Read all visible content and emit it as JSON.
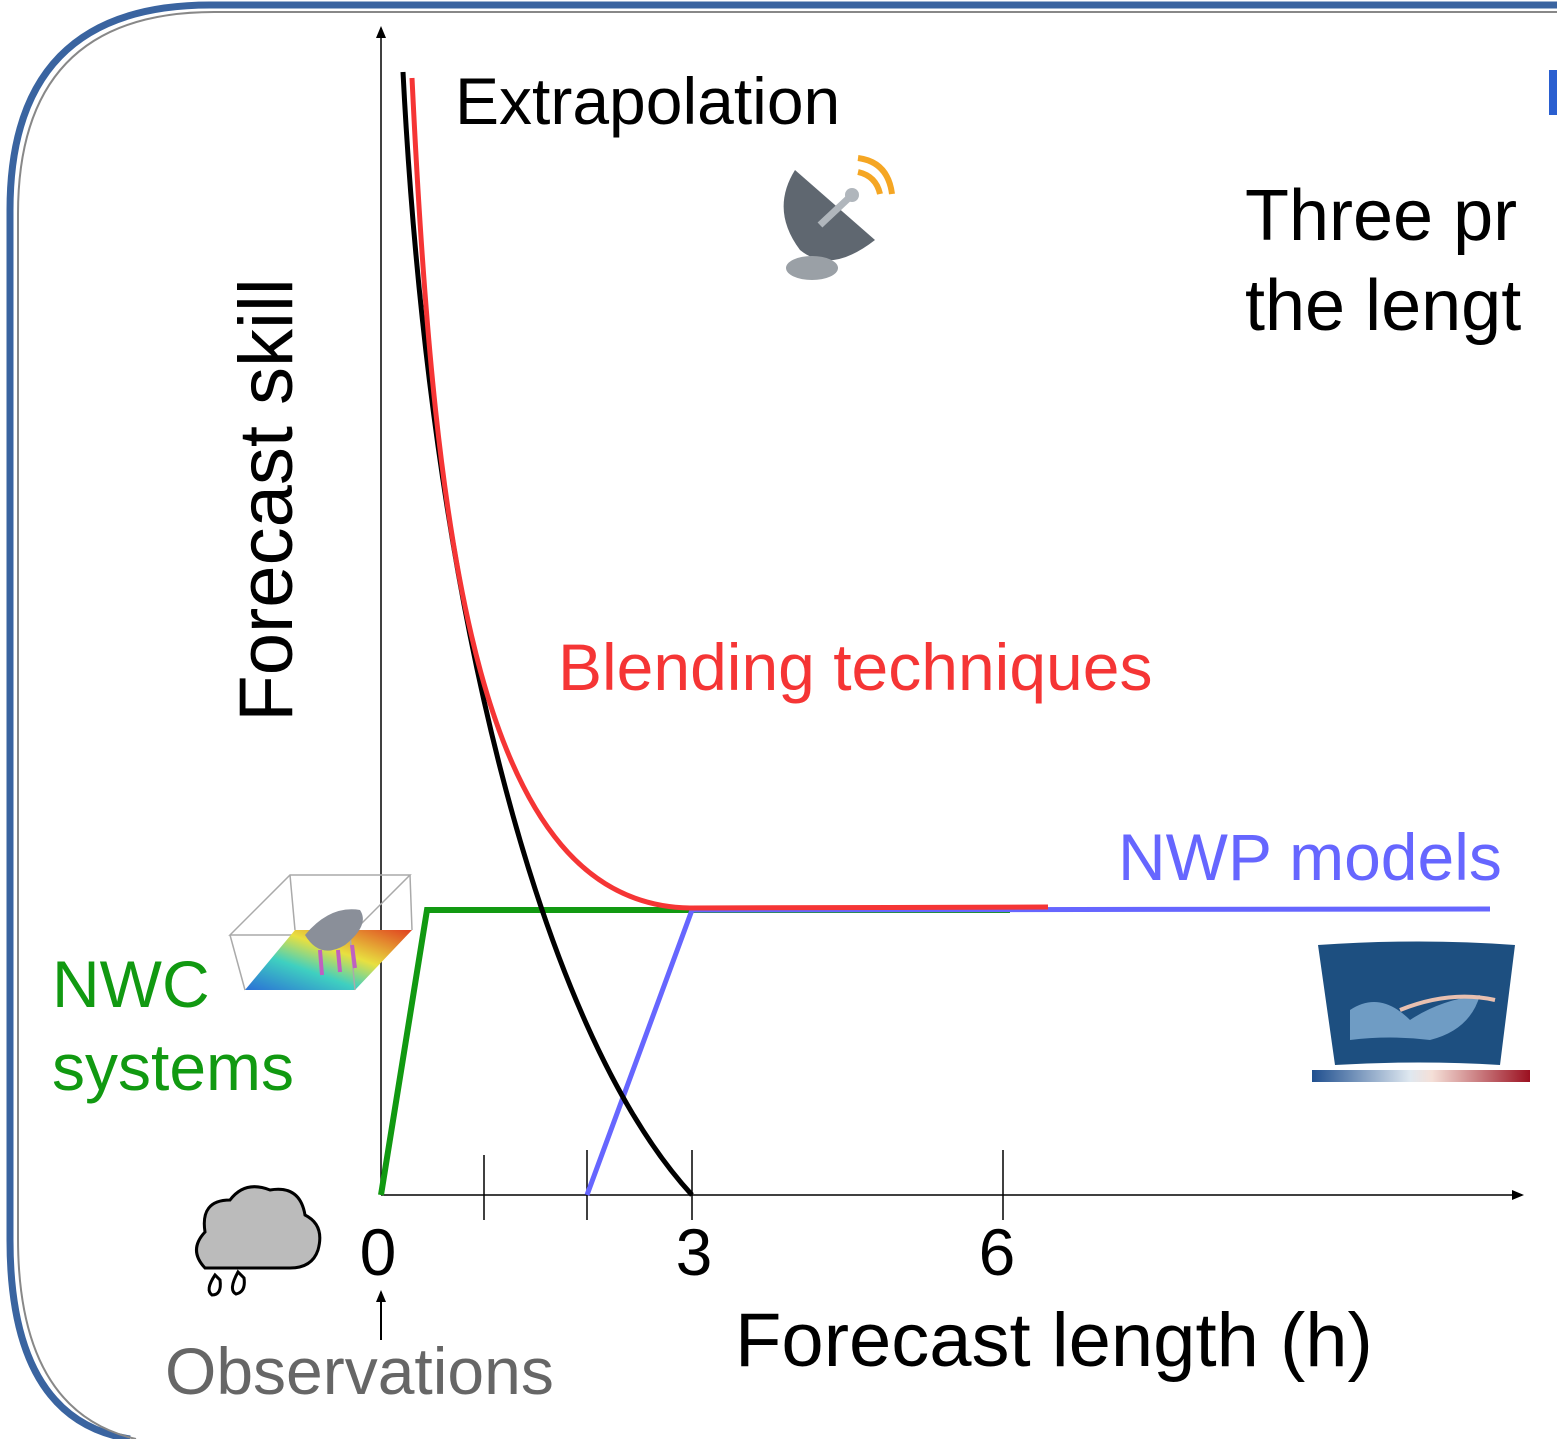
{
  "diagram": {
    "y_axis_label": "Forecast skill",
    "x_axis_label": "Forecast length (h)",
    "x_ticks": [
      "0",
      "3",
      "6"
    ],
    "curves": {
      "extrapolation": "Extrapolation",
      "blending": "Blending techniques",
      "nwp": "NWP models",
      "nwc_line1": "NWC",
      "nwc_line2": "systems"
    },
    "observations": "Observations",
    "side_text": {
      "line1": "Three pr",
      "line2": "the lengt"
    }
  }
}
